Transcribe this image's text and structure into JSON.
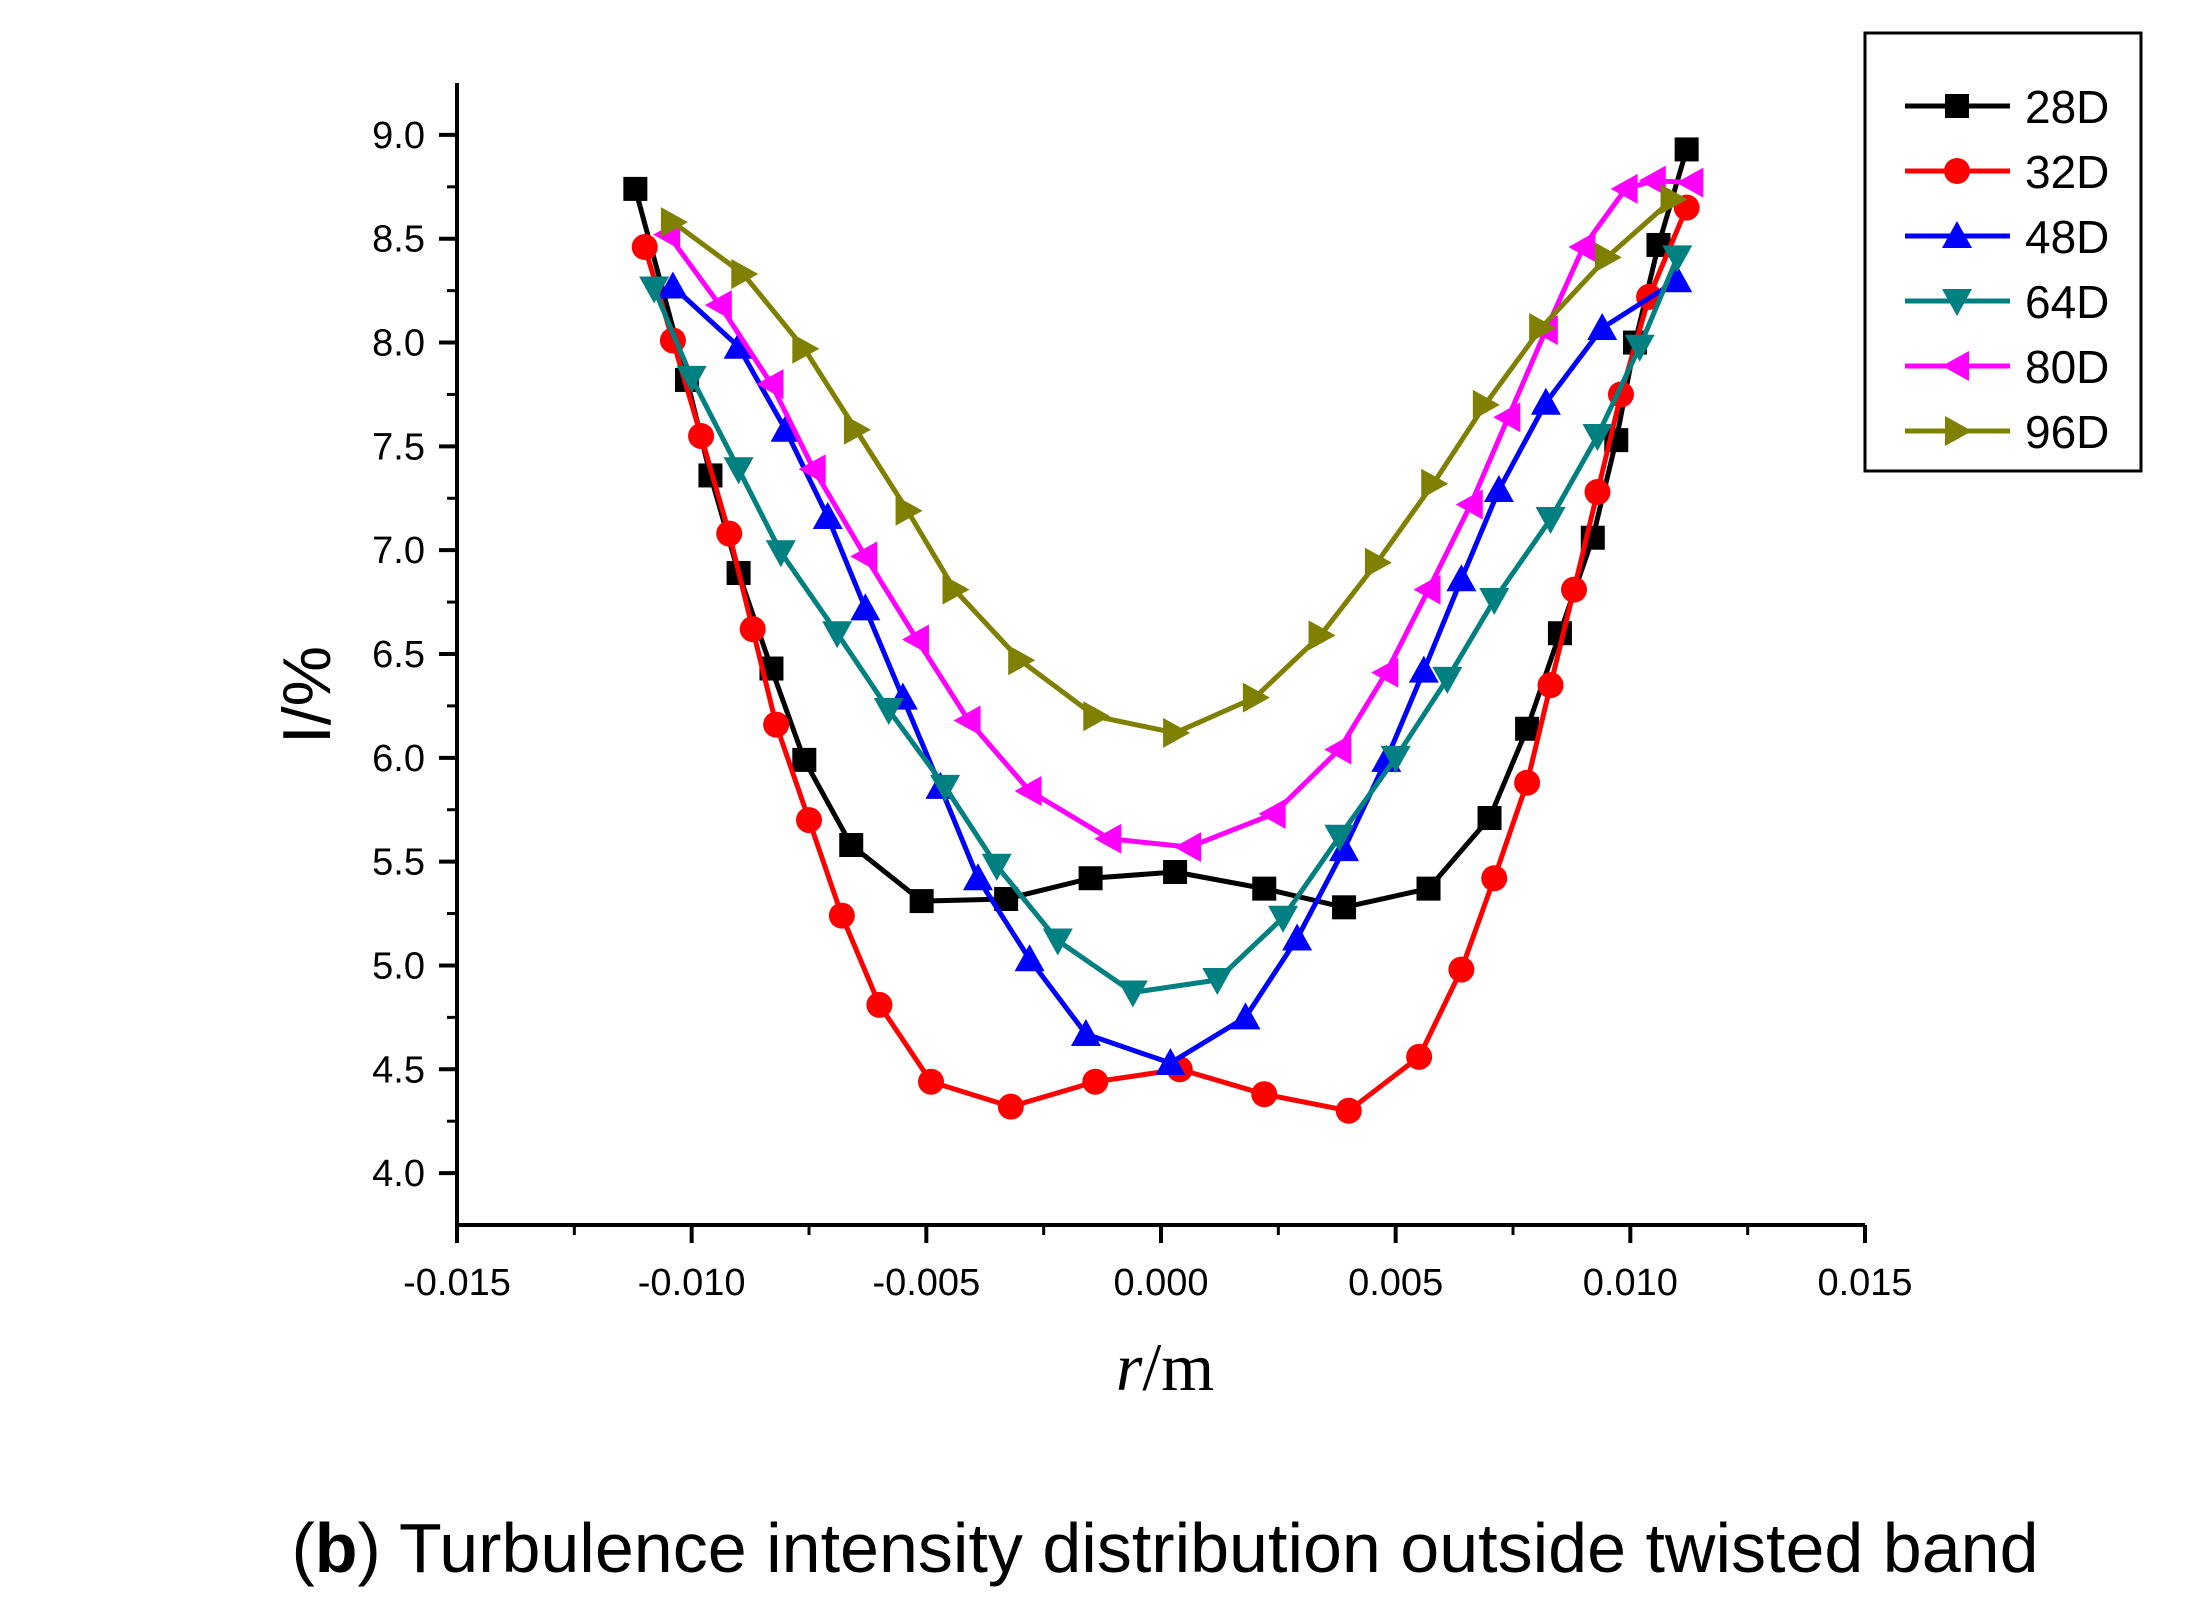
{
  "chart_data": {
    "type": "line",
    "title": "",
    "xlabel_italic": "r",
    "xlabel_rest": "/m",
    "ylabel": "I/%",
    "xlim": [
      -0.015,
      0.015
    ],
    "ylim": [
      3.75,
      9.25
    ],
    "x_ticks": [
      -0.015,
      -0.01,
      -0.005,
      0.0,
      0.005,
      0.01,
      0.015
    ],
    "x_tick_labels": [
      "-0.015",
      "-0.010",
      "-0.005",
      "0.000",
      "0.005",
      "0.010",
      "0.015"
    ],
    "y_ticks": [
      4.0,
      4.5,
      5.0,
      5.5,
      6.0,
      6.5,
      7.0,
      7.5,
      8.0,
      8.5,
      9.0
    ],
    "y_tick_labels": [
      "4.0",
      "4.5",
      "5.0",
      "5.5",
      "6.0",
      "6.5",
      "7.0",
      "7.5",
      "8.0",
      "8.5",
      "9.0"
    ],
    "legend_position": "top-right",
    "caption_bold": "b",
    "caption_open": "(",
    "caption_rest": ") Turbulence intensity distribution outside twisted band",
    "series": [
      {
        "name": "28D",
        "color": "#000000",
        "marker": "square",
        "x": [
          -0.0112,
          -0.0101,
          -0.0096,
          -0.009,
          -0.0083,
          -0.0076,
          -0.0066,
          -0.0051,
          -0.0033,
          -0.0015,
          0.0003,
          0.0022,
          0.0039,
          0.0057,
          0.007,
          0.0078,
          0.0085,
          0.0092,
          0.0097,
          0.0101,
          0.0106,
          0.0112
        ],
        "y": [
          8.74,
          7.82,
          7.36,
          6.89,
          6.43,
          5.99,
          5.58,
          5.31,
          5.32,
          5.42,
          5.45,
          5.37,
          5.28,
          5.37,
          5.71,
          6.14,
          6.6,
          7.06,
          7.53,
          8.0,
          8.47,
          8.93
        ]
      },
      {
        "name": "32D",
        "color": "#ff0000",
        "marker": "circle",
        "x": [
          -0.011,
          -0.0104,
          -0.0098,
          -0.0092,
          -0.0087,
          -0.0082,
          -0.0075,
          -0.0068,
          -0.006,
          -0.0049,
          -0.0032,
          -0.0014,
          0.0004,
          0.0022,
          0.004,
          0.0055,
          0.0064,
          0.0071,
          0.0078,
          0.0083,
          0.0088,
          0.0093,
          0.0098,
          0.0104,
          0.0112
        ],
        "y": [
          8.46,
          8.01,
          7.55,
          7.08,
          6.62,
          6.16,
          5.7,
          5.24,
          4.81,
          4.44,
          4.32,
          4.44,
          4.5,
          4.38,
          4.3,
          4.56,
          4.98,
          5.42,
          5.88,
          6.35,
          6.81,
          7.28,
          7.75,
          8.22,
          8.65
        ]
      },
      {
        "name": "48D",
        "color": "#0000ff",
        "marker": "triangle-up",
        "x": [
          -0.0104,
          -0.009,
          -0.008,
          -0.0071,
          -0.0063,
          -0.0055,
          -0.0047,
          -0.0039,
          -0.0028,
          -0.0016,
          0.0002,
          0.0018,
          0.0029,
          0.0039,
          0.0048,
          0.0056,
          0.0064,
          0.0072,
          0.0082,
          0.0094,
          0.011
        ],
        "y": [
          8.27,
          7.98,
          7.58,
          7.16,
          6.72,
          6.29,
          5.86,
          5.42,
          5.03,
          4.67,
          4.53,
          4.75,
          5.13,
          5.56,
          5.99,
          6.42,
          6.86,
          7.29,
          7.71,
          8.07,
          8.3
        ]
      },
      {
        "name": "64D",
        "color": "#008080",
        "marker": "triangle-down",
        "x": [
          -0.0108,
          -0.01,
          -0.009,
          -0.0081,
          -0.0069,
          -0.0058,
          -0.0046,
          -0.0035,
          -0.0022,
          -0.0006,
          0.0012,
          0.0026,
          0.0038,
          0.005,
          0.0061,
          0.0071,
          0.0083,
          0.0093,
          0.0102,
          0.011
        ],
        "y": [
          8.26,
          7.83,
          7.39,
          6.99,
          6.6,
          6.23,
          5.86,
          5.48,
          5.12,
          4.87,
          4.93,
          5.23,
          5.62,
          6.0,
          6.38,
          6.76,
          7.15,
          7.55,
          7.98,
          8.41
        ]
      },
      {
        "name": "80D",
        "color": "#ff00ff",
        "marker": "triangle-left",
        "x": [
          -0.0105,
          -0.0094,
          -0.0083,
          -0.0074,
          -0.0063,
          -0.0052,
          -0.0041,
          -0.0028,
          -0.0011,
          0.0006,
          0.0024,
          0.0038,
          0.0048,
          0.0057,
          0.0066,
          0.0074,
          0.0082,
          0.009,
          0.0099,
          0.0105,
          0.0113
        ],
        "y": [
          8.52,
          8.18,
          7.8,
          7.39,
          6.97,
          6.57,
          6.18,
          5.84,
          5.61,
          5.57,
          5.73,
          6.04,
          6.41,
          6.81,
          7.22,
          7.64,
          8.06,
          8.46,
          8.74,
          8.78,
          8.77
        ]
      },
      {
        "name": "96D",
        "color": "#808000",
        "marker": "triangle-right",
        "x": [
          -0.0104,
          -0.0089,
          -0.0076,
          -0.0065,
          -0.0054,
          -0.0044,
          -0.003,
          -0.0014,
          0.0003,
          0.002,
          0.0034,
          0.0046,
          0.0058,
          0.0069,
          0.0081,
          0.0095,
          0.0109
        ],
        "y": [
          8.58,
          8.33,
          7.97,
          7.58,
          7.19,
          6.81,
          6.47,
          6.2,
          6.12,
          6.29,
          6.59,
          6.94,
          7.32,
          7.7,
          8.07,
          8.41,
          8.69
        ]
      }
    ]
  }
}
